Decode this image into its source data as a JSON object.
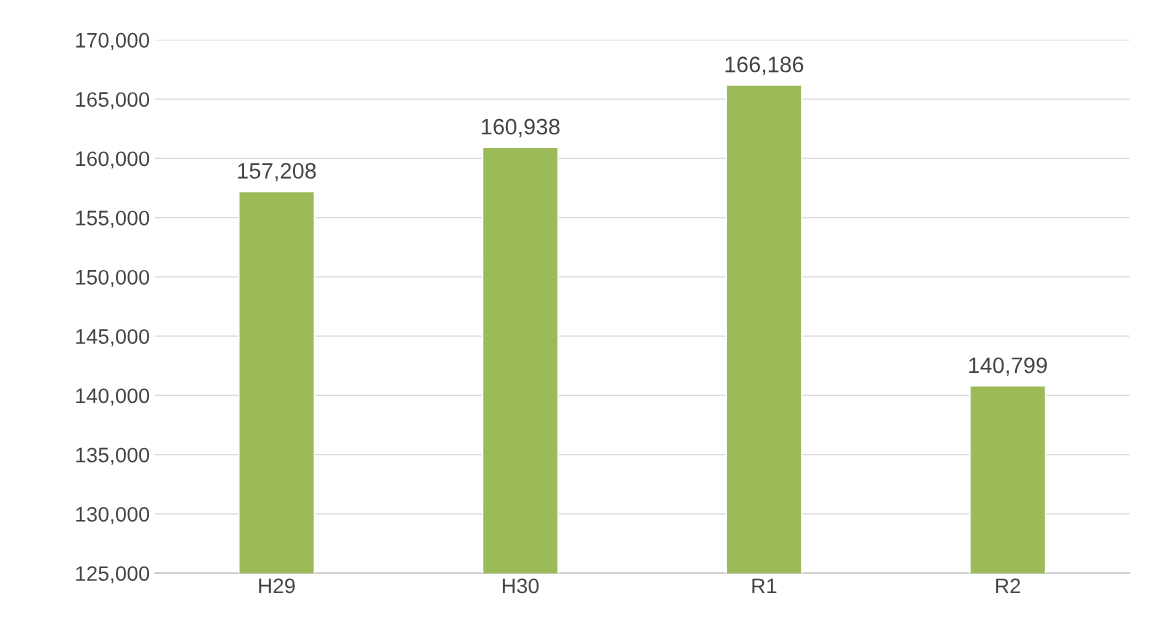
{
  "chart_data": {
    "type": "bar",
    "categories": [
      "H29",
      "H30",
      "R1",
      "R2"
    ],
    "values": [
      157208,
      160938,
      166186,
      140799
    ],
    "value_labels": [
      "157,208",
      "160,938",
      "166,186",
      "140,799"
    ],
    "color": "#9bbb59",
    "ylim": [
      125000,
      170000
    ],
    "yticks": [
      {
        "value": 125000,
        "label": "125,000"
      },
      {
        "value": 130000,
        "label": "130,000"
      },
      {
        "value": 135000,
        "label": "135,000"
      },
      {
        "value": 140000,
        "label": "140,000"
      },
      {
        "value": 145000,
        "label": "145,000"
      },
      {
        "value": 150000,
        "label": "150,000"
      },
      {
        "value": 155000,
        "label": "155,000"
      },
      {
        "value": 160000,
        "label": "160,000"
      },
      {
        "value": 165000,
        "label": "165,000"
      },
      {
        "value": 170000,
        "label": "170,000"
      }
    ],
    "grid": "y",
    "legend": false
  }
}
